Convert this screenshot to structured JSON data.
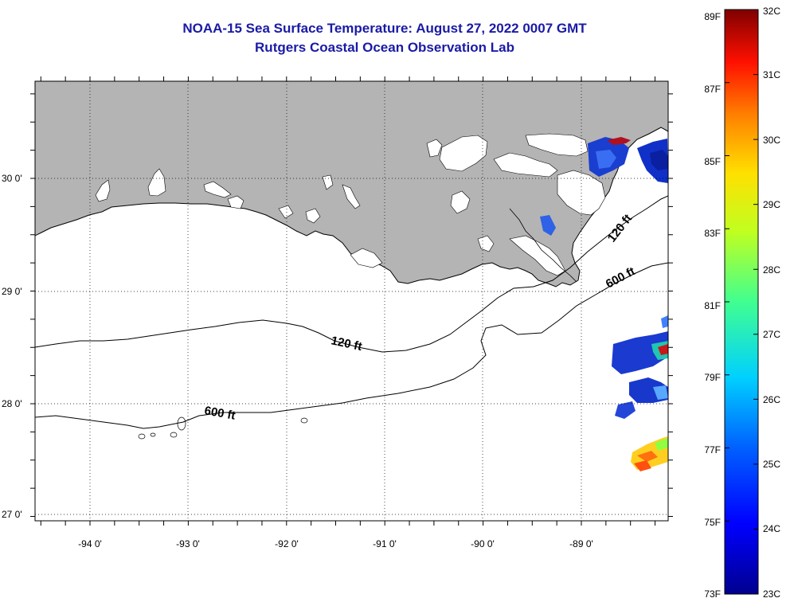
{
  "header": {
    "title": "NOAA-15 Sea Surface Temperature:  August 27, 2022 0007 GMT",
    "subtitle": "Rutgers Coastal Ocean Observation Lab"
  },
  "axes": {
    "lon_labels": [
      "-94 0'",
      "-93 0'",
      "-92 0'",
      "-91 0'",
      "-90 0'",
      "-89 0'"
    ],
    "lat_labels": [
      "30 0'",
      "29 0'",
      "28 0'",
      "27 0'"
    ]
  },
  "contours": {
    "label_120": "120 ft",
    "label_600": "600 ft"
  },
  "colorbar": {
    "fahrenheit": [
      "89F",
      "87F",
      "85F",
      "83F",
      "81F",
      "79F",
      "77F",
      "75F",
      "73F"
    ],
    "celsius": [
      "32C",
      "31C",
      "30C",
      "29C",
      "28C",
      "27C",
      "26C",
      "25C",
      "24C",
      "23C"
    ]
  },
  "colors": {
    "land": "#b4b4b4",
    "title": "#1a1aa6"
  }
}
